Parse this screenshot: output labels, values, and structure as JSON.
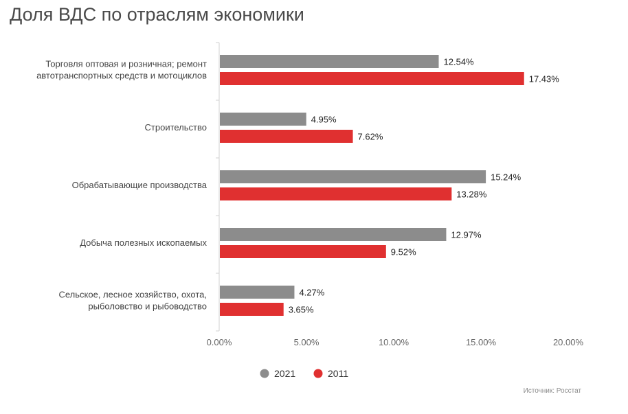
{
  "title": "Доля ВДС по отраслям экономики",
  "source": "Источник: Росстат",
  "colors": {
    "s2021": "#8c8c8c",
    "s2011": "#e03030",
    "axis": "#d0d0d0",
    "text": "#333333"
  },
  "chart_data": {
    "type": "bar",
    "orientation": "horizontal",
    "title": "Доля ВДС по отраслям экономики",
    "categories": [
      [
        "Торговля оптовая и розничная; ремонт",
        "автотранспортных средств и мотоциклов"
      ],
      [
        "Строительство"
      ],
      [
        "Обрабатывающие производства"
      ],
      [
        "Добыча полезных ископаемых"
      ],
      [
        "Сельское, лесное хозяйство, охота,",
        "рыболовство и рыбоводство"
      ]
    ],
    "series": [
      {
        "name": "2021",
        "values": [
          12.54,
          4.95,
          15.24,
          12.97,
          4.27
        ],
        "labels": [
          "12.54%",
          "4.95%",
          "15.24%",
          "12.97%",
          "4.27%"
        ]
      },
      {
        "name": "2011",
        "values": [
          17.43,
          7.62,
          13.28,
          9.52,
          3.65
        ],
        "labels": [
          "17.43%",
          "7.62%",
          "13.28%",
          "9.52%",
          "3.65%"
        ]
      }
    ],
    "xlim": [
      0,
      20
    ],
    "xticks": [
      0,
      5,
      10,
      15,
      20
    ],
    "xtick_labels": [
      "0.00%",
      "5.00%",
      "10.00%",
      "15.00%",
      "20.00%"
    ],
    "legend": [
      "2021",
      "2011"
    ],
    "legend_position": "bottom"
  }
}
